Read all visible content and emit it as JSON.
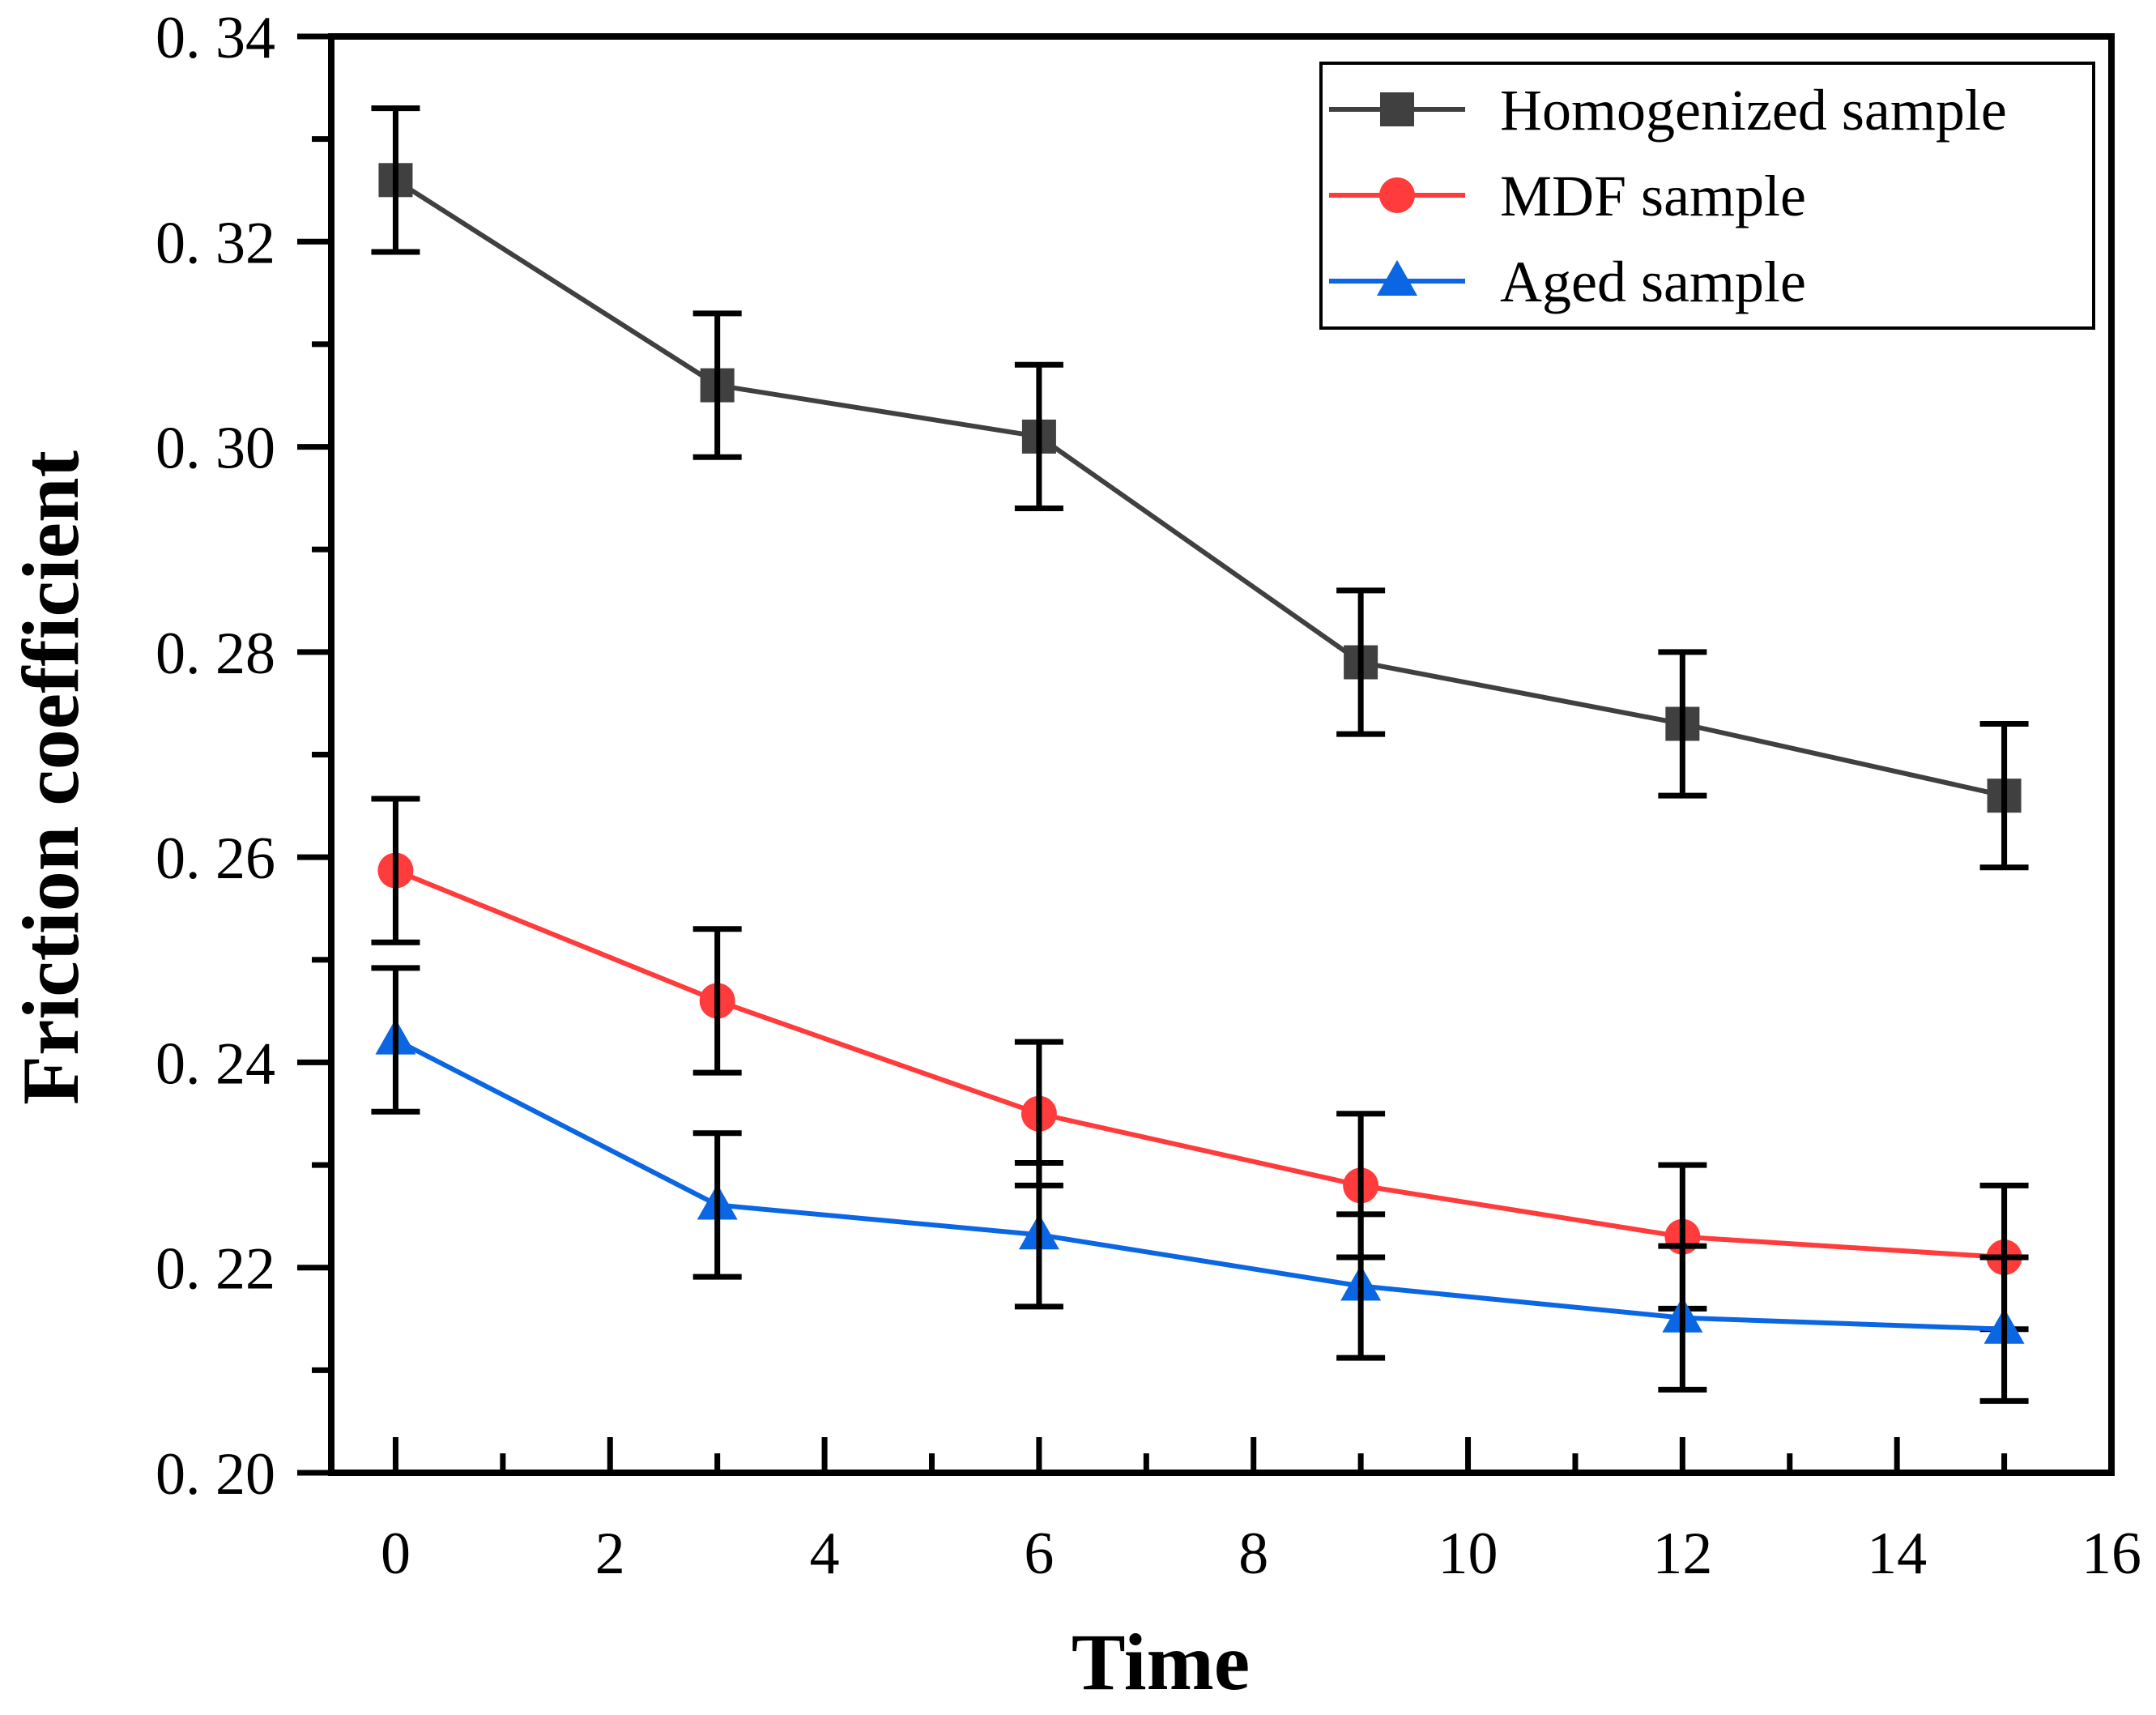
{
  "chart_data": {
    "type": "line",
    "title": "",
    "xlabel": "Time",
    "ylabel": "Friction coefficient",
    "xlim": [
      -0.6,
      16
    ],
    "ylim": [
      0.2,
      0.34
    ],
    "xticks": [
      0,
      2,
      4,
      6,
      8,
      10,
      12,
      14,
      16
    ],
    "xtick_labels": [
      "0",
      "2",
      "4",
      "6",
      "8",
      "10",
      "12",
      "14",
      "16"
    ],
    "yticks": [
      0.2,
      0.22,
      0.24,
      0.26,
      0.28,
      0.3,
      0.32,
      0.34
    ],
    "ytick_labels": [
      "0. 20",
      "0. 22",
      "0. 24",
      "0. 26",
      "0. 28",
      "0. 30",
      "0. 32",
      "0. 34"
    ],
    "grid": false,
    "legend_position": "top-right",
    "x": [
      0,
      3,
      6,
      9,
      12,
      15
    ],
    "series": [
      {
        "name": "Homogenized sample",
        "color": "#404040",
        "marker": "square",
        "values": [
          0.326,
          0.306,
          0.301,
          0.279,
          0.273,
          0.266
        ],
        "errors": [
          0.007,
          0.007,
          0.007,
          0.007,
          0.007,
          0.007
        ]
      },
      {
        "name": "MDF sample",
        "color": "#ff3b3b",
        "marker": "circle",
        "values": [
          0.2587,
          0.246,
          0.235,
          0.228,
          0.223,
          0.221
        ],
        "errors": [
          0.007,
          0.007,
          0.007,
          0.007,
          0.007,
          0.007
        ]
      },
      {
        "name": "Aged sample",
        "color": "#0b66e4",
        "marker": "triangle",
        "values": [
          0.2422,
          0.2261,
          0.2232,
          0.2182,
          0.2151,
          0.214
        ],
        "errors": [
          0.007,
          0.007,
          0.007,
          0.007,
          0.007,
          0.007
        ]
      }
    ]
  }
}
